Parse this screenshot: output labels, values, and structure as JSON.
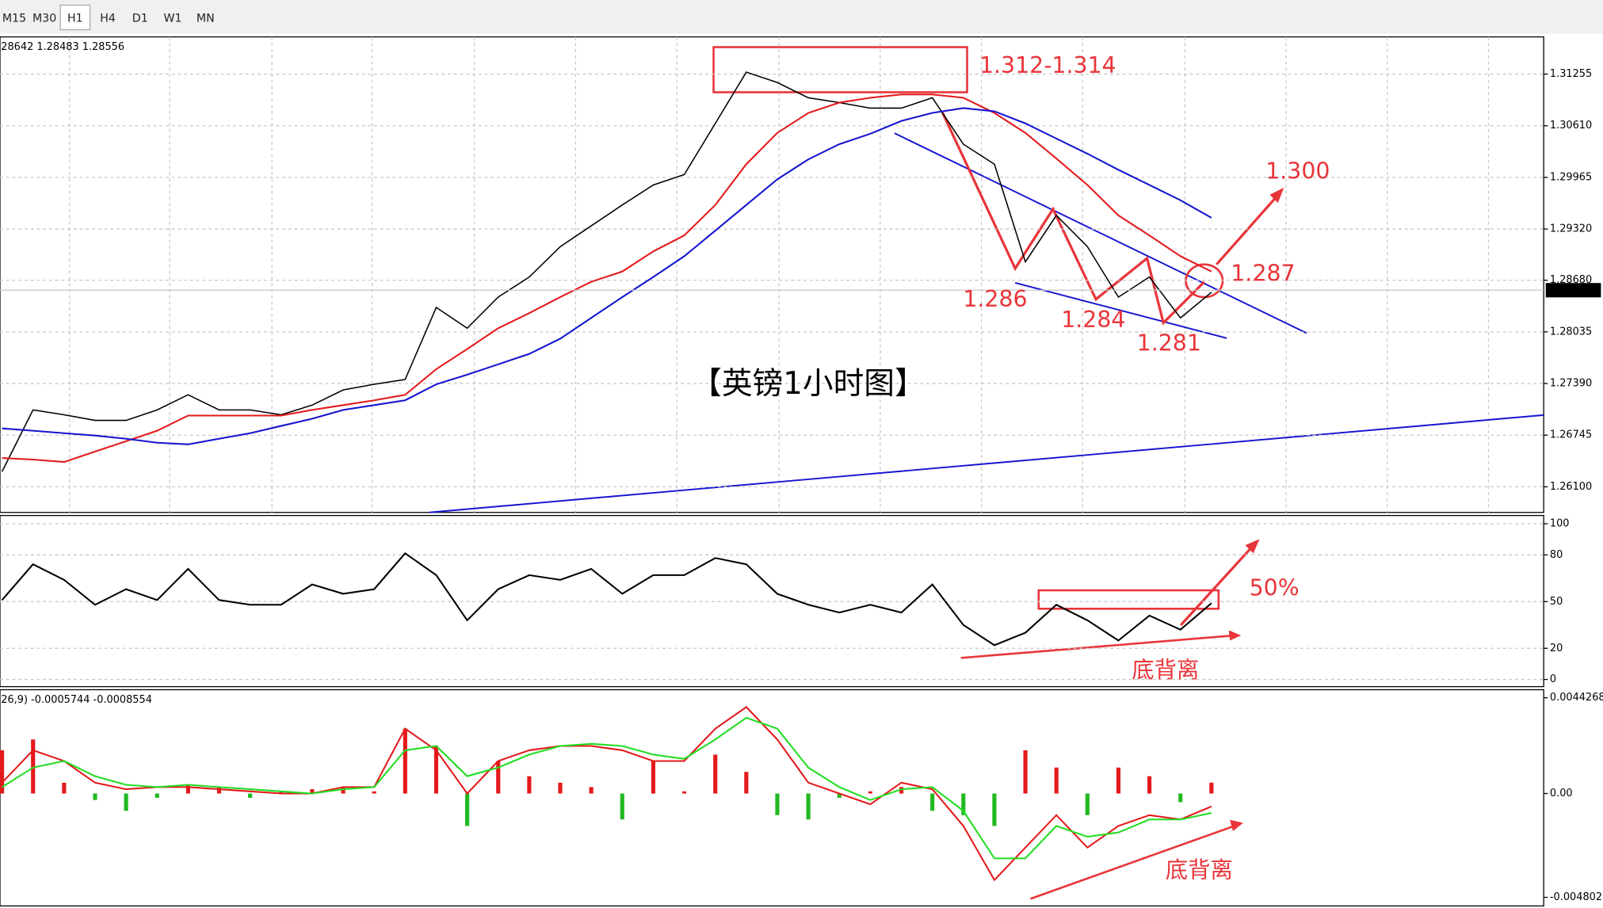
{
  "toolbar": [
    "M15",
    "M30",
    "H1",
    "H4",
    "D1",
    "W1",
    "MN"
  ],
  "chart_data": [
    {
      "type": "line",
      "info": "28642 1.28483 1.28556",
      "grid": true,
      "ylim": [
        1.2578,
        1.3172
      ],
      "yticks": [
        1.31255,
        {
          "value": 1.3061,
          "label": "1.30610"
        },
        1.29965,
        {
          "value": 1.2932,
          "label": "1.29320"
        },
        {
          "value": 1.2868,
          "label": "1.28680"
        },
        1.28035,
        {
          "value": 1.2739,
          "label": "1.27390"
        },
        1.26745,
        {
          "value": 1.261,
          "label": "1.26100"
        }
      ],
      "last_price": 1.28556,
      "series": [
        {
          "color": "#000000",
          "values": [
            1.2629,
            1.2706,
            1.27,
            1.2693,
            1.2693,
            1.2706,
            1.2725,
            1.2706,
            1.2706,
            1.27,
            1.2712,
            1.2731,
            1.2738,
            1.2744,
            1.2834,
            1.2808,
            1.2847,
            1.2872,
            1.291,
            1.2936,
            1.2962,
            1.2987,
            1.3,
            1.3064,
            1.3128,
            1.3115,
            1.3096,
            1.309,
            1.3083,
            1.3083,
            1.3096,
            1.3038,
            1.3013,
            1.2891,
            1.2949,
            1.291,
            1.2847,
            1.2872,
            1.2821,
            1.2853
          ]
        },
        {
          "color": "#e31a1c",
          "values": [
            1.2646,
            1.2644,
            1.2641,
            1.2654,
            1.2667,
            1.268,
            1.2699,
            1.2699,
            1.2699,
            1.2699,
            1.2706,
            1.2712,
            1.2718,
            1.2725,
            1.2757,
            1.2782,
            1.2808,
            1.2827,
            1.2847,
            1.2866,
            1.2879,
            1.2904,
            1.2924,
            1.2962,
            1.3013,
            1.3052,
            1.3077,
            1.309,
            1.3096,
            1.31,
            1.31,
            1.3096,
            1.3077,
            1.3052,
            1.302,
            1.2987,
            1.2949,
            1.2924,
            1.2898,
            1.2879
          ]
        },
        {
          "color": "#1515d0",
          "values": [
            1.2683,
            1.268,
            1.2677,
            1.2674,
            1.267,
            1.2665,
            1.2663,
            1.267,
            1.2677,
            1.2686,
            1.2695,
            1.2706,
            1.2712,
            1.2718,
            1.2738,
            1.275,
            1.2763,
            1.2776,
            1.2795,
            1.2821,
            1.2847,
            1.2872,
            1.2898,
            1.293,
            1.2962,
            1.2994,
            1.3019,
            1.3038,
            1.3051,
            1.3067,
            1.3077,
            1.3083,
            1.3079,
            1.3064,
            1.3045,
            1.3026,
            1.3006,
            1.2987,
            1.2968,
            1.2946
          ]
        }
      ],
      "annotations": [
        "1.312-1.314",
        "1.300",
        "1.287",
        "1.286",
        "1.284",
        "1.281",
        "【英镑1小时图】"
      ]
    },
    {
      "type": "line",
      "grid": true,
      "ylim": [
        -4.6,
        105.3
      ],
      "yticks": [
        100,
        80,
        50,
        20,
        0
      ],
      "series": [
        {
          "color": "#000000",
          "values": [
            51,
            74,
            64,
            48,
            58,
            51,
            71,
            51,
            48,
            48,
            61,
            55,
            58,
            81,
            67,
            38,
            58,
            67,
            64,
            71,
            55,
            67,
            67,
            78,
            74,
            55,
            48,
            43,
            48,
            43,
            61,
            35,
            22,
            30,
            48,
            38,
            25,
            41,
            32,
            49
          ]
        }
      ],
      "annotations": [
        "50%",
        "底背离"
      ]
    },
    {
      "type": "bar",
      "info": "26,9) -0.0005744 -0.0008554",
      "grid": false,
      "ylim": [
        -0.0052,
        0.0048
      ],
      "yticks": [
        0.0044268,
        {
          "value": 0,
          "label": "0.00"
        },
        -0.004802
      ],
      "colors": [
        "#e31a1c",
        "#22b822"
      ],
      "values": [
        0.002,
        0.0025,
        0.0005,
        -0.0003,
        -0.0008,
        -0.0002,
        0.0004,
        0.0003,
        -0.0002,
        0.0001,
        0.0002,
        0.0003,
        0.0001,
        0.003,
        0.0022,
        -0.0015,
        0.0015,
        0.0008,
        0.0005,
        0.0003,
        -0.0012,
        0.0015,
        0.0001,
        0.0018,
        0.001,
        -0.001,
        -0.0012,
        -0.0002,
        0.0001,
        0.0003,
        -0.0008,
        -0.001,
        -0.0015,
        0.002,
        0.0012,
        -0.001,
        0.0012,
        0.0008,
        -0.0004,
        0.0005
      ],
      "series": [
        {
          "color": "#e31a1c",
          "values": [
            0.0005,
            0.002,
            0.0015,
            0.0005,
            0.0002,
            0.0003,
            0.0003,
            0.0002,
            0.0001,
            0.0,
            0.0,
            0.0003,
            0.0003,
            0.003,
            0.002,
            0.0,
            0.0015,
            0.002,
            0.0022,
            0.0022,
            0.002,
            0.0015,
            0.0015,
            0.003,
            0.004,
            0.0025,
            0.0005,
            0.0,
            -0.0005,
            0.0005,
            0.0002,
            -0.0015,
            -0.004,
            -0.0025,
            -0.001,
            -0.0025,
            -0.0015,
            -0.001,
            -0.0012,
            -0.0006
          ]
        },
        {
          "color": "#22dd22",
          "values": [
            0.0003,
            0.0012,
            0.0015,
            0.0008,
            0.0004,
            0.0003,
            0.0004,
            0.0003,
            0.0002,
            0.0001,
            0.0,
            0.0002,
            0.0003,
            0.002,
            0.0022,
            0.0008,
            0.0012,
            0.0018,
            0.0022,
            0.0023,
            0.0022,
            0.0018,
            0.0016,
            0.0025,
            0.0035,
            0.003,
            0.0012,
            0.0003,
            -0.0003,
            0.0002,
            0.0003,
            -0.0008,
            -0.003,
            -0.003,
            -0.0015,
            -0.002,
            -0.0018,
            -0.0012,
            -0.0012,
            -0.0009
          ]
        }
      ],
      "annotations": [
        "底背离"
      ]
    }
  ]
}
